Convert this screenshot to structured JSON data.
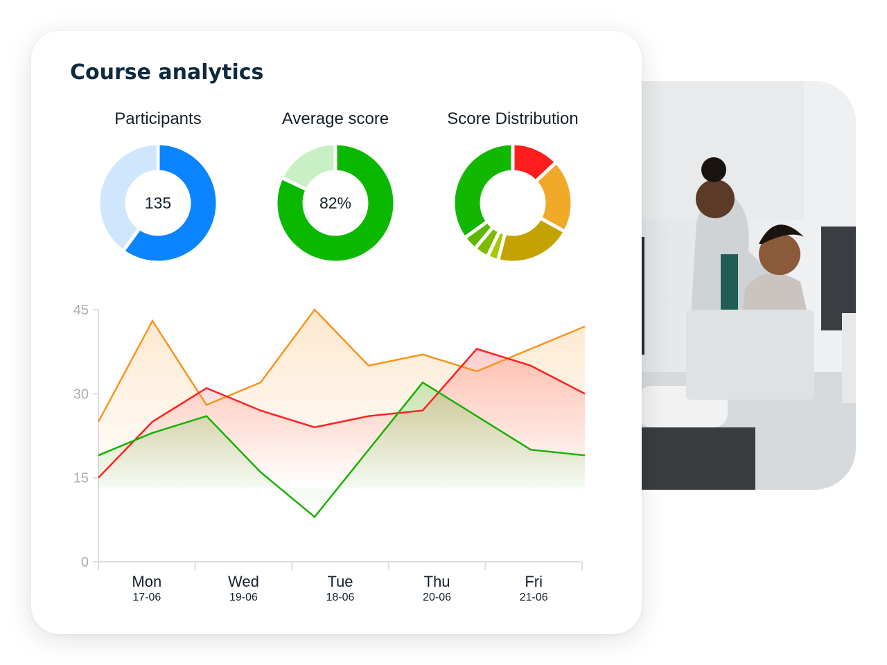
{
  "card": {
    "title": "Course analytics"
  },
  "donuts": [
    {
      "label": "Participants",
      "center_text": "135",
      "slices": [
        {
          "value": 60,
          "color": "#0a84ff"
        },
        {
          "value": 40,
          "color": "#cfe6fd"
        }
      ]
    },
    {
      "label": "Average score",
      "center_text": "82%",
      "slices": [
        {
          "value": 82,
          "color": "#0ab800"
        },
        {
          "value": 18,
          "color": "#c9f0c4"
        }
      ]
    },
    {
      "label": "Score Distribution",
      "center_text": "",
      "slices": [
        {
          "value": 13,
          "color": "#ff1e1e"
        },
        {
          "value": 20,
          "color": "#f0a928"
        },
        {
          "value": 21,
          "color": "#c4a200"
        },
        {
          "value": 3,
          "color": "#a6c800"
        },
        {
          "value": 4,
          "color": "#7dba00"
        },
        {
          "value": 4,
          "color": "#5cb800"
        },
        {
          "value": 35,
          "color": "#12b800"
        }
      ]
    }
  ],
  "chart_data": {
    "type": "line",
    "categories": [
      "Mon",
      "Wed",
      "Tue",
      "Thu",
      "Fri"
    ],
    "dates": [
      "17-06",
      "19-06",
      "18-06",
      "20-06",
      "21-06"
    ],
    "x": [
      0,
      0.5,
      1,
      1.5,
      2,
      2.5,
      3,
      3.5,
      4,
      4.5
    ],
    "ylim": [
      0,
      45
    ],
    "yticks": [
      0,
      15,
      30,
      45
    ],
    "series": [
      {
        "color": "#f7941d",
        "values": [
          25,
          43,
          28,
          32,
          45,
          35,
          37,
          34,
          38,
          42
        ]
      },
      {
        "color": "#ff2020",
        "values": [
          15,
          25,
          31,
          27,
          24,
          26,
          27,
          38,
          35,
          30
        ]
      },
      {
        "color": "#16b100",
        "values": [
          19,
          23,
          26,
          16,
          8,
          20,
          32,
          26,
          20,
          19
        ]
      }
    ]
  }
}
